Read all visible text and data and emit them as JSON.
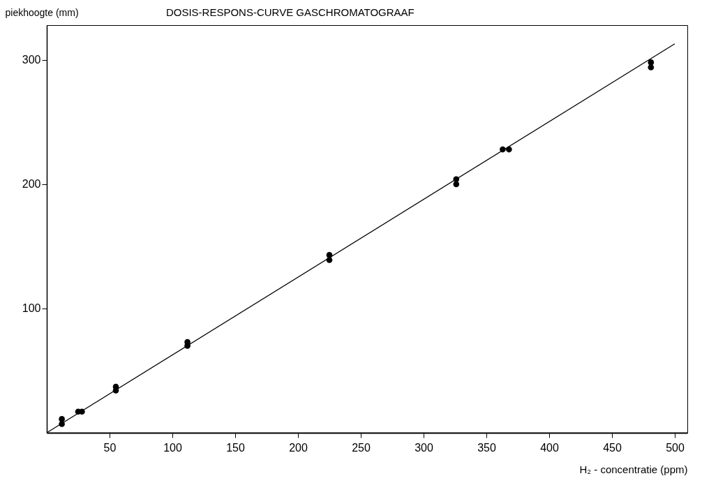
{
  "chart_data": {
    "type": "scatter",
    "title": "DOSIS-RESPONS-CURVE GASCHROMATOGRAAF",
    "xlabel": "H₂ - concentratie (ppm)",
    "ylabel": "piekhoogte (mm)",
    "xlim": [
      0,
      510
    ],
    "ylim": [
      0,
      328
    ],
    "xticks": [
      50,
      100,
      150,
      200,
      250,
      300,
      350,
      400,
      450,
      500
    ],
    "yticks": [
      100,
      200,
      300
    ],
    "grid": false,
    "marker": "circle",
    "series": [
      {
        "color": "#000000",
        "x": [
          12,
          12,
          25,
          28,
          55,
          55,
          112,
          112,
          225,
          225,
          326,
          326,
          363,
          368,
          481,
          481
        ],
        "values": [
          11,
          7,
          17,
          17,
          37,
          34,
          73,
          70,
          143,
          139,
          204,
          200,
          228,
          228,
          298,
          294
        ]
      },
      {
        "type": "line",
        "marker": "none",
        "color": "#000000",
        "x": [
          0,
          500
        ],
        "values": [
          0,
          313
        ]
      }
    ]
  }
}
